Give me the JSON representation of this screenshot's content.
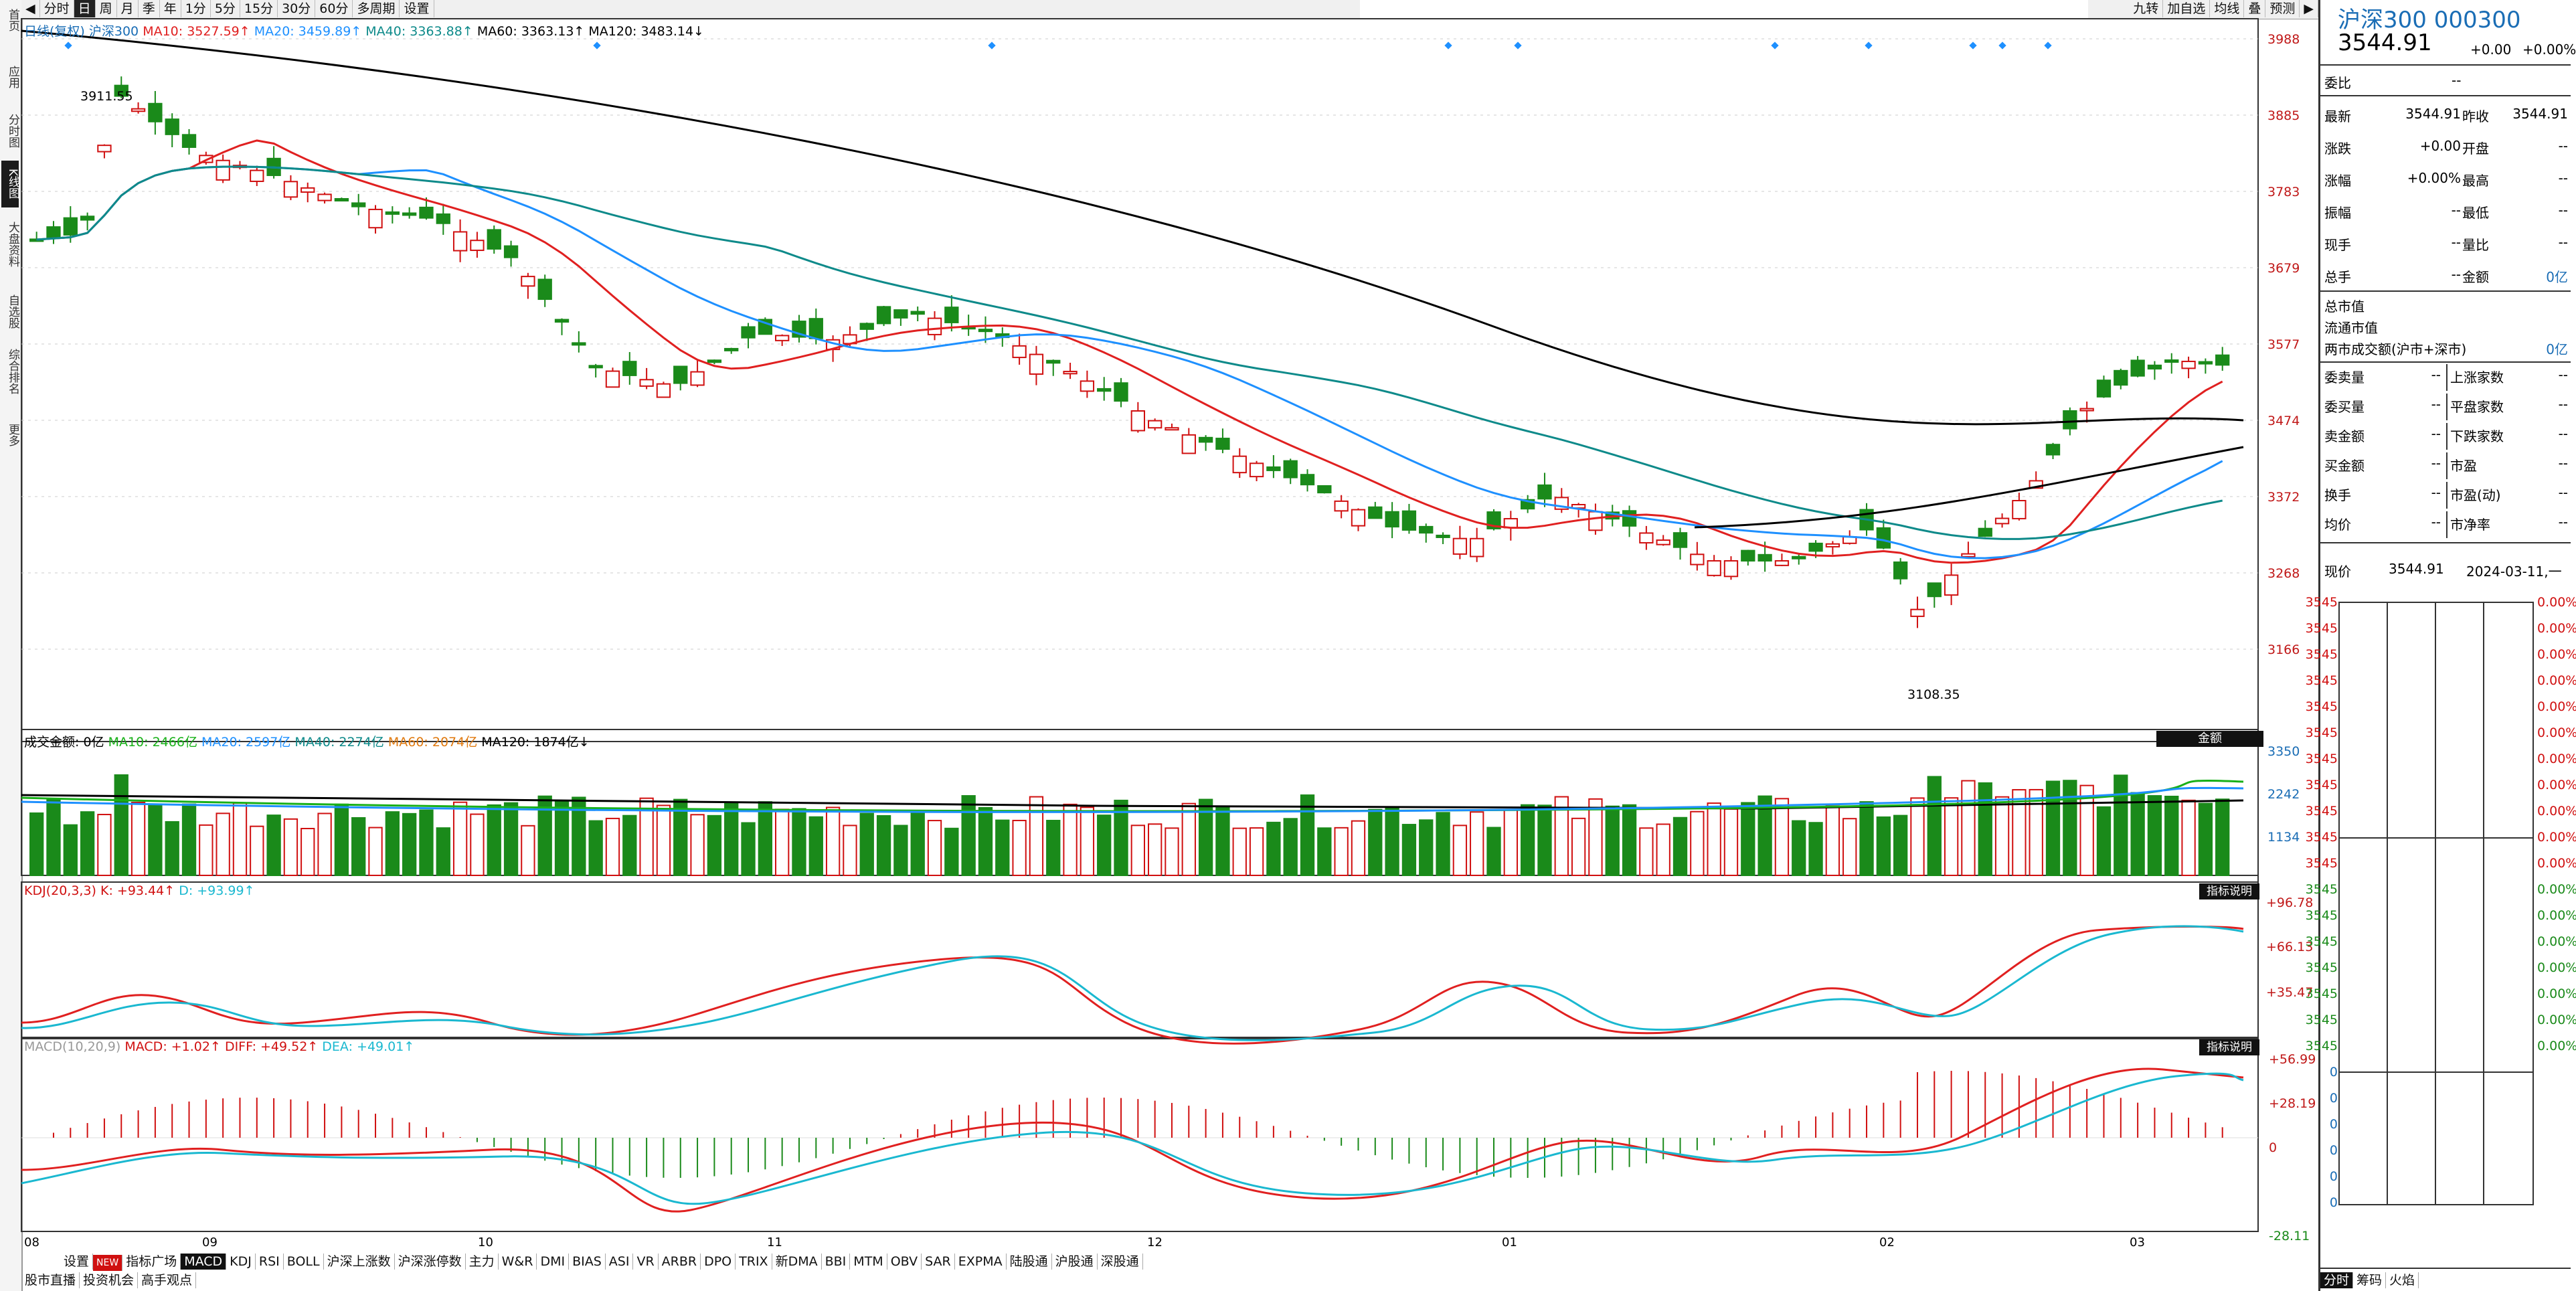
{
  "sidebar": {
    "items": [
      "首页",
      "应用",
      "分时图",
      "K线图",
      "大盘资料",
      "自选股",
      "综合排名",
      "更多"
    ],
    "active": 3
  },
  "toolbar": {
    "nav_arrow": "◀",
    "periods": [
      "分时",
      "日",
      "周",
      "月",
      "季",
      "年",
      "1分",
      "5分",
      "15分",
      "30分",
      "60分",
      "多周期",
      "设置"
    ],
    "active": 1,
    "right_buttons": [
      "九转",
      "加自选",
      "均线",
      "叠",
      "预测"
    ],
    "right_arrow": "▶"
  },
  "chart_info": {
    "label": "日线(复权)",
    "name": "沪深300",
    "ma10": "MA10: 3527.59↑",
    "ma20": "MA20: 3459.89↑",
    "ma40": "MA40: 3363.88↑",
    "ma60": "MA60: 3363.13↑",
    "ma120": "MA120: 3483.14↓",
    "high_label": "3911.55",
    "low_label": "3108.35"
  },
  "price_axis": [
    "3988",
    "3885",
    "3783",
    "3679",
    "3577",
    "3474",
    "3372",
    "3268",
    "3166"
  ],
  "volume_info": {
    "label": "成交金额: 0亿",
    "ma10": "MA10: 2466亿",
    "ma20": "MA20: 2597亿",
    "ma40": "MA40: 2274亿",
    "ma60": "MA60: 2074亿",
    "ma120": "MA120: 1874亿↓",
    "tag": "金额",
    "axis": [
      "3350",
      "2242",
      "1134"
    ]
  },
  "kdj": {
    "label": "KDJ(20,3,3)",
    "k": "K: +93.44↑",
    "d": "D: +93.99↑",
    "tag": "指标说明",
    "axis": [
      "+96.78",
      "+66.13",
      "+35.47"
    ]
  },
  "macd": {
    "label": "MACD(10,20,9)",
    "macd": "MACD: +1.02↑",
    "diff": "DIFF: +49.52↑",
    "dea": "DEA: +49.01↑",
    "tag": "指标说明",
    "axis": [
      "+56.99",
      "+28.19",
      "0",
      "-28.11"
    ]
  },
  "date_axis": [
    "08",
    "09",
    "10",
    "11",
    "12",
    "01",
    "02",
    "03"
  ],
  "indicator_tabs": [
    "设置",
    "NEW",
    "指标广场",
    "MACD",
    "KDJ",
    "RSI",
    "BOLL",
    "沪深上涨数",
    "沪深涨停数",
    "主力",
    "W&R",
    "DMI",
    "BIAS",
    "ASI",
    "VR",
    "ARBR",
    "DPO",
    "TRIX",
    "新DMA",
    "BBI",
    "MTM",
    "OBV",
    "SAR",
    "EXPMA",
    "陆股通",
    "沪股通",
    "深股通"
  ],
  "bottom_tabs": [
    "股市直播",
    "投资机会",
    "高手观点"
  ],
  "right_panel": {
    "title": "沪深300 000300",
    "price": "3544.91",
    "change": "+0.00",
    "change_pct": "+0.00%",
    "webi_label": "委比",
    "webi_val": "--",
    "rows_a": [
      {
        "l1": "最新",
        "v1": "3544.91",
        "l2": "昨收",
        "v2": "3544.91"
      },
      {
        "l1": "涨跌",
        "v1": "+0.00",
        "l2": "开盘",
        "v2": "--"
      },
      {
        "l1": "涨幅",
        "v1": "+0.00%",
        "l2": "最高",
        "v2": "--"
      },
      {
        "l1": "振幅",
        "v1": "--",
        "l2": "最低",
        "v2": "--"
      },
      {
        "l1": "现手",
        "v1": "--",
        "l2": "量比",
        "v2": "--"
      },
      {
        "l1": "总手",
        "v1": "--",
        "l2": "金额",
        "v2": "0亿"
      }
    ],
    "rows_b": [
      {
        "l": "总市值",
        "v": ""
      },
      {
        "l": "流通市值",
        "v": ""
      },
      {
        "l": "两市成交额(沪市+深市)",
        "v": "0亿"
      }
    ],
    "rows_c": [
      {
        "l1": "委卖量",
        "v1": "--",
        "l2": "上涨家数",
        "v2": "--"
      },
      {
        "l1": "委买量",
        "v1": "--",
        "l2": "平盘家数",
        "v2": "--"
      },
      {
        "l1": "卖金额",
        "v1": "--",
        "l2": "下跌家数",
        "v2": "--"
      },
      {
        "l1": "买金额",
        "v1": "--",
        "l2": "市盈",
        "v2": "--"
      },
      {
        "l1": "换手",
        "v1": "--",
        "l2": "市盈(动)",
        "v2": "--"
      },
      {
        "l1": "均价",
        "v1": "--",
        "l2": "市净率",
        "v2": "--"
      }
    ],
    "now_label": "现价",
    "now_price": "3544.91",
    "now_date": "2024-03-11,一",
    "mini_left": [
      "3545",
      "3545",
      "3545",
      "3545",
      "3545",
      "3545",
      "3545",
      "3545",
      "3545",
      "3545",
      "3545",
      "3545",
      "3545",
      "3545",
      "3545",
      "3545",
      "3545",
      "3545",
      "0",
      "0",
      "0",
      "0",
      "0",
      "0"
    ],
    "mini_right": [
      "0.00%",
      "0.00%",
      "0.00%",
      "0.00%",
      "0.00%",
      "0.00%",
      "0.00%",
      "0.00%",
      "0.00%",
      "0.00%",
      "0.00%",
      "0.00%",
      "0.00%",
      "0.00%",
      "0.00%",
      "0.00%",
      "0.00%",
      "0.00%"
    ],
    "bottom_tabs": [
      "分时",
      "筹码",
      "火焰"
    ]
  },
  "colors": {
    "up": "#d01010",
    "down": "#1a8a1a",
    "ma10": "#e02020",
    "ma20": "#1e90ff",
    "ma40": "#0e8a8a",
    "ma120": "#000000"
  }
}
